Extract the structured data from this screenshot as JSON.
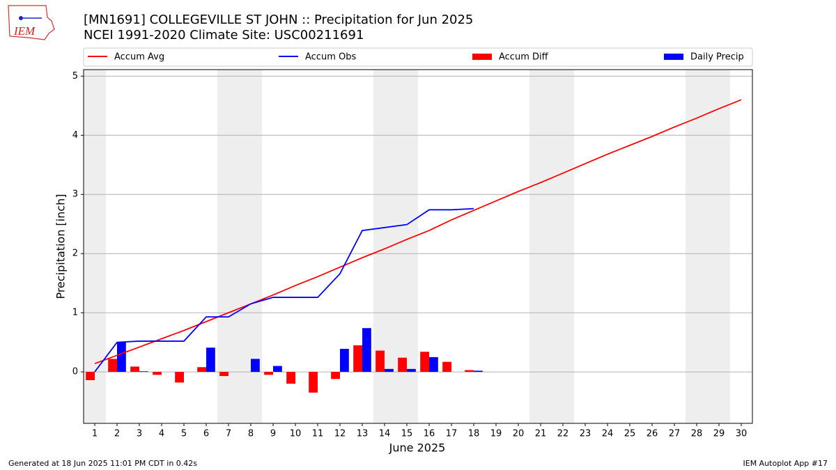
{
  "logo_text": "IEM",
  "footer_left": "Generated at 18 Jun 2025 11:01 PM CDT in 0.42s",
  "footer_right": "IEM Autoplot App #17",
  "chart_data": {
    "type": "bar_line",
    "title": "[MN1691] COLLEGEVILLE ST JOHN :: Precipitation for Jun 2025",
    "subtitle": "NCEI 1991-2020 Climate Site: USC00211691",
    "xlabel": "June 2025",
    "ylabel": "Precipitation [inch]",
    "x": [
      1,
      2,
      3,
      4,
      5,
      6,
      7,
      8,
      9,
      10,
      11,
      12,
      13,
      14,
      15,
      16,
      17,
      18,
      19,
      20,
      21,
      22,
      23,
      24,
      25,
      26,
      27,
      28,
      29,
      30
    ],
    "xlim": [
      0.5,
      30.5
    ],
    "xticks": [
      1,
      2,
      3,
      4,
      5,
      6,
      7,
      8,
      9,
      10,
      11,
      12,
      13,
      14,
      15,
      16,
      17,
      18,
      19,
      20,
      21,
      22,
      23,
      24,
      25,
      26,
      27,
      28,
      29,
      30
    ],
    "ylim": [
      -0.87,
      5.11
    ],
    "yticks": [
      0,
      1,
      2,
      3,
      4,
      5
    ],
    "grid": true,
    "shade_spans": [
      [
        0.5,
        1.5
      ],
      [
        6.5,
        8.5
      ],
      [
        13.5,
        15.5
      ],
      [
        20.5,
        22.5
      ],
      [
        27.5,
        29.5
      ]
    ],
    "shade_color": "#eeeeee",
    "series": [
      {
        "name": "Accum Avg",
        "kind": "line",
        "color": "#ff0000",
        "values": [
          0.14,
          0.28,
          0.42,
          0.56,
          0.7,
          0.85,
          1.0,
          1.15,
          1.3,
          1.46,
          1.61,
          1.77,
          1.93,
          2.08,
          2.24,
          2.39,
          2.57,
          2.73,
          2.89,
          3.05,
          3.2,
          3.36,
          3.52,
          3.68,
          3.83,
          3.98,
          4.14,
          4.29,
          4.45,
          4.6
        ]
      },
      {
        "name": "Accum Obs",
        "kind": "line",
        "color": "#0000ff",
        "values": [
          0.0,
          0.5,
          0.52,
          0.52,
          0.52,
          0.93,
          0.93,
          1.15,
          1.26,
          1.26,
          1.26,
          1.66,
          2.39,
          2.44,
          2.49,
          2.74,
          2.74,
          2.76,
          null,
          null,
          null,
          null,
          null,
          null,
          null,
          null,
          null,
          null,
          null,
          null
        ]
      },
      {
        "name": "Accum Diff",
        "kind": "bar",
        "offset": -0.2,
        "color": "#ff0000",
        "values": [
          -0.14,
          0.22,
          0.09,
          -0.05,
          -0.18,
          0.08,
          -0.07,
          0.0,
          -0.05,
          -0.2,
          -0.35,
          -0.12,
          0.45,
          0.36,
          0.24,
          0.34,
          0.17,
          0.03,
          null,
          null,
          null,
          null,
          null,
          null,
          null,
          null,
          null,
          null,
          null,
          null
        ]
      },
      {
        "name": "Daily Precip",
        "kind": "bar",
        "offset": 0.2,
        "color": "#0000ff",
        "values": [
          0,
          0.5,
          0.01,
          0,
          0,
          0.41,
          0,
          0.22,
          0.1,
          0,
          0,
          0.39,
          0.74,
          0.05,
          0.05,
          0.25,
          0,
          0.02,
          null,
          null,
          null,
          null,
          null,
          null,
          null,
          null,
          null,
          null,
          null,
          null
        ]
      }
    ]
  }
}
